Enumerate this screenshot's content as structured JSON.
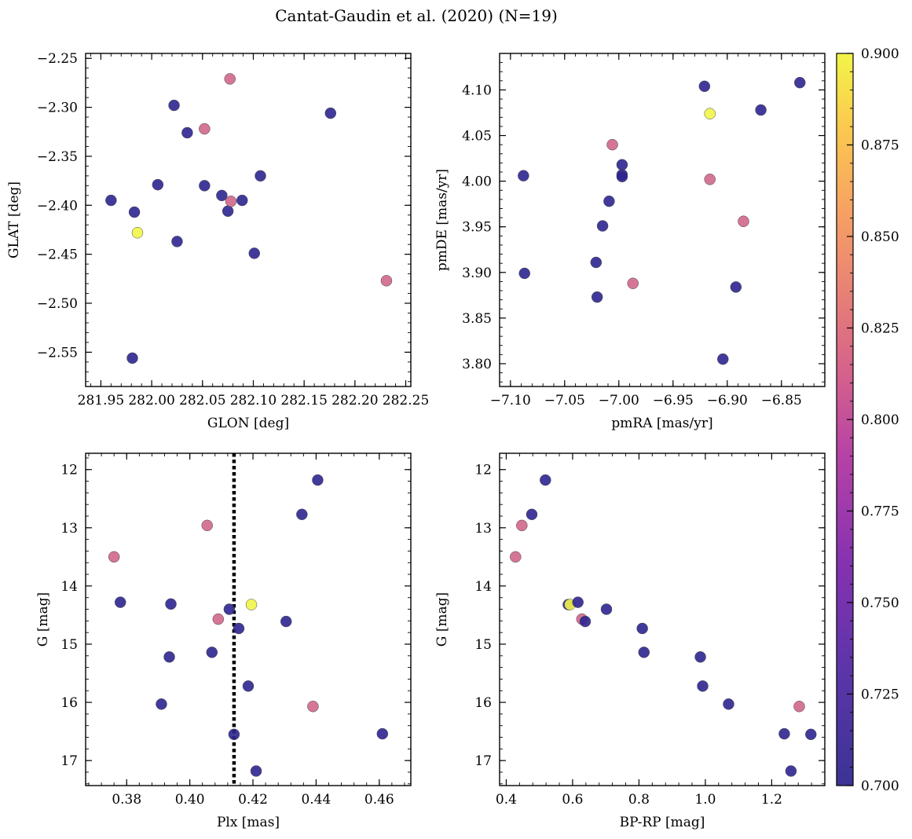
{
  "title": "Cantat-Gaudin et al. (2020) (N=19)",
  "colorbar": {
    "colormap": "plasma",
    "range": [
      0.7,
      0.9
    ],
    "ticks": [
      0.7,
      0.725,
      0.75,
      0.775,
      0.8,
      0.825,
      0.85,
      0.875,
      0.9
    ],
    "tick_labels": [
      "0.700",
      "0.725",
      "0.750",
      "0.775",
      "0.800",
      "0.825",
      "0.850",
      "0.875",
      "0.900"
    ]
  },
  "chart_data": [
    {
      "type": "scatter",
      "id": "glon-glat",
      "xlabel": "GLON [deg]",
      "ylabel": "GLAT [deg]",
      "xlim": [
        281.935,
        282.255
      ],
      "ylim": [
        -2.585,
        -2.245
      ],
      "y_inverted": false,
      "xticks": [
        281.95,
        282.0,
        282.05,
        282.1,
        282.15,
        282.2,
        282.25
      ],
      "xtick_labels": [
        "281.95",
        "282.00",
        "282.05",
        "282.10",
        "282.15",
        "282.20",
        "282.25"
      ],
      "yticks": [
        -2.55,
        -2.5,
        -2.45,
        -2.4,
        -2.35,
        -2.3,
        -2.25
      ],
      "ytick_labels": [
        "−2.55",
        "−2.50",
        "−2.45",
        "−2.40",
        "−2.35",
        "−2.30",
        "−2.25"
      ],
      "points": [
        {
          "x": 281.96,
          "y": -2.395,
          "c": 0.7
        },
        {
          "x": 281.983,
          "y": -2.407,
          "c": 0.7
        },
        {
          "x": 281.981,
          "y": -2.556,
          "c": 0.7
        },
        {
          "x": 281.986,
          "y": -2.428,
          "c": 0.9
        },
        {
          "x": 282.006,
          "y": -2.379,
          "c": 0.7
        },
        {
          "x": 282.022,
          "y": -2.298,
          "c": 0.7
        },
        {
          "x": 282.025,
          "y": -2.437,
          "c": 0.7
        },
        {
          "x": 282.035,
          "y": -2.326,
          "c": 0.7
        },
        {
          "x": 282.052,
          "y": -2.38,
          "c": 0.7
        },
        {
          "x": 282.052,
          "y": -2.322,
          "c": 0.8
        },
        {
          "x": 282.069,
          "y": -2.39,
          "c": 0.7
        },
        {
          "x": 282.075,
          "y": -2.406,
          "c": 0.7
        },
        {
          "x": 282.077,
          "y": -2.271,
          "c": 0.8
        },
        {
          "x": 282.078,
          "y": -2.396,
          "c": 0.8
        },
        {
          "x": 282.089,
          "y": -2.395,
          "c": 0.7
        },
        {
          "x": 282.101,
          "y": -2.449,
          "c": 0.7
        },
        {
          "x": 282.107,
          "y": -2.37,
          "c": 0.7
        },
        {
          "x": 282.176,
          "y": -2.306,
          "c": 0.7
        },
        {
          "x": 282.231,
          "y": -2.477,
          "c": 0.8
        }
      ]
    },
    {
      "type": "scatter",
      "id": "pmra-pmde",
      "xlabel": "pmRA [mas/yr]",
      "ylabel": "pmDE [mas/yr]",
      "xlim": [
        -7.11,
        -6.81
      ],
      "ylim": [
        3.775,
        4.14
      ],
      "y_inverted": false,
      "xticks": [
        -7.1,
        -7.05,
        -7.0,
        -6.95,
        -6.9,
        -6.85
      ],
      "xtick_labels": [
        "−7.10",
        "−7.05",
        "−7.00",
        "−6.95",
        "−6.90",
        "−6.85"
      ],
      "yticks": [
        3.8,
        3.85,
        3.9,
        3.95,
        4.0,
        4.05,
        4.1
      ],
      "ytick_labels": [
        "3.80",
        "3.85",
        "3.90",
        "3.95",
        "4.00",
        "4.05",
        "4.10"
      ],
      "points": [
        {
          "x": -7.088,
          "y": 4.006,
          "c": 0.7
        },
        {
          "x": -7.087,
          "y": 3.899,
          "c": 0.7
        },
        {
          "x": -7.021,
          "y": 3.911,
          "c": 0.7
        },
        {
          "x": -7.02,
          "y": 3.873,
          "c": 0.7
        },
        {
          "x": -7.015,
          "y": 3.951,
          "c": 0.7
        },
        {
          "x": -7.009,
          "y": 3.978,
          "c": 0.7
        },
        {
          "x": -7.006,
          "y": 4.04,
          "c": 0.8
        },
        {
          "x": -6.997,
          "y": 4.018,
          "c": 0.7
        },
        {
          "x": -6.997,
          "y": 4.007,
          "c": 0.7
        },
        {
          "x": -6.997,
          "y": 4.005,
          "c": 0.7
        },
        {
          "x": -6.987,
          "y": 3.888,
          "c": 0.8
        },
        {
          "x": -6.921,
          "y": 4.104,
          "c": 0.7
        },
        {
          "x": -6.916,
          "y": 4.074,
          "c": 0.9
        },
        {
          "x": -6.916,
          "y": 4.002,
          "c": 0.8
        },
        {
          "x": -6.904,
          "y": 3.805,
          "c": 0.7
        },
        {
          "x": -6.892,
          "y": 3.884,
          "c": 0.7
        },
        {
          "x": -6.885,
          "y": 3.956,
          "c": 0.8
        },
        {
          "x": -6.869,
          "y": 4.078,
          "c": 0.7
        },
        {
          "x": -6.833,
          "y": 4.108,
          "c": 0.7
        }
      ]
    },
    {
      "type": "scatter",
      "id": "plx-g",
      "xlabel": "Plx [mas]",
      "ylabel": "G [mag]",
      "xlim": [
        0.367,
        0.47
      ],
      "ylim": [
        11.72,
        17.43
      ],
      "y_inverted": true,
      "xticks": [
        0.38,
        0.4,
        0.42,
        0.44,
        0.46
      ],
      "xtick_labels": [
        "0.38",
        "0.40",
        "0.42",
        "0.44",
        "0.46"
      ],
      "yticks": [
        12,
        13,
        14,
        15,
        16,
        17
      ],
      "ytick_labels": [
        "12",
        "13",
        "14",
        "15",
        "16",
        "17"
      ],
      "vline": 0.414,
      "points": [
        {
          "x": 0.376,
          "y": 13.5,
          "c": 0.8
        },
        {
          "x": 0.378,
          "y": 14.28,
          "c": 0.7
        },
        {
          "x": 0.391,
          "y": 16.03,
          "c": 0.7
        },
        {
          "x": 0.3935,
          "y": 15.22,
          "c": 0.7
        },
        {
          "x": 0.394,
          "y": 14.31,
          "c": 0.7
        },
        {
          "x": 0.4055,
          "y": 12.96,
          "c": 0.8
        },
        {
          "x": 0.407,
          "y": 15.14,
          "c": 0.7
        },
        {
          "x": 0.409,
          "y": 14.57,
          "c": 0.8
        },
        {
          "x": 0.4125,
          "y": 14.4,
          "c": 0.7
        },
        {
          "x": 0.414,
          "y": 16.55,
          "c": 0.7
        },
        {
          "x": 0.4155,
          "y": 14.73,
          "c": 0.7
        },
        {
          "x": 0.4185,
          "y": 15.72,
          "c": 0.7
        },
        {
          "x": 0.4195,
          "y": 14.32,
          "c": 0.9
        },
        {
          "x": 0.421,
          "y": 17.18,
          "c": 0.7
        },
        {
          "x": 0.4305,
          "y": 14.61,
          "c": 0.7
        },
        {
          "x": 0.4355,
          "y": 12.77,
          "c": 0.7
        },
        {
          "x": 0.439,
          "y": 16.07,
          "c": 0.8
        },
        {
          "x": 0.4405,
          "y": 12.18,
          "c": 0.7
        },
        {
          "x": 0.461,
          "y": 16.54,
          "c": 0.7
        }
      ]
    },
    {
      "type": "scatter",
      "id": "bprp-g",
      "xlabel": "BP-RP [mag]",
      "ylabel": "G [mag]",
      "xlim": [
        0.38,
        1.36
      ],
      "ylim": [
        11.72,
        17.43
      ],
      "y_inverted": true,
      "xticks": [
        0.4,
        0.6,
        0.8,
        1.0,
        1.2
      ],
      "xtick_labels": [
        "0.4",
        "0.6",
        "0.8",
        "1.0",
        "1.2"
      ],
      "yticks": [
        12,
        13,
        14,
        15,
        16,
        17
      ],
      "ytick_labels": [
        "12",
        "13",
        "14",
        "15",
        "16",
        "17"
      ],
      "points": [
        {
          "x": 0.428,
          "y": 13.5,
          "c": 0.8
        },
        {
          "x": 0.447,
          "y": 12.96,
          "c": 0.8
        },
        {
          "x": 0.477,
          "y": 12.77,
          "c": 0.7
        },
        {
          "x": 0.518,
          "y": 12.18,
          "c": 0.7
        },
        {
          "x": 0.587,
          "y": 14.32,
          "c": 0.7
        },
        {
          "x": 0.592,
          "y": 14.32,
          "c": 0.9
        },
        {
          "x": 0.616,
          "y": 14.28,
          "c": 0.7
        },
        {
          "x": 0.628,
          "y": 14.57,
          "c": 0.8
        },
        {
          "x": 0.638,
          "y": 14.61,
          "c": 0.7
        },
        {
          "x": 0.702,
          "y": 14.4,
          "c": 0.7
        },
        {
          "x": 0.81,
          "y": 14.73,
          "c": 0.7
        },
        {
          "x": 0.815,
          "y": 15.14,
          "c": 0.7
        },
        {
          "x": 0.985,
          "y": 15.22,
          "c": 0.7
        },
        {
          "x": 0.992,
          "y": 15.72,
          "c": 0.7
        },
        {
          "x": 1.07,
          "y": 16.03,
          "c": 0.7
        },
        {
          "x": 1.238,
          "y": 16.54,
          "c": 0.7
        },
        {
          "x": 1.258,
          "y": 17.18,
          "c": 0.7
        },
        {
          "x": 1.283,
          "y": 16.07,
          "c": 0.8
        },
        {
          "x": 1.318,
          "y": 16.55,
          "c": 0.7
        }
      ]
    }
  ]
}
